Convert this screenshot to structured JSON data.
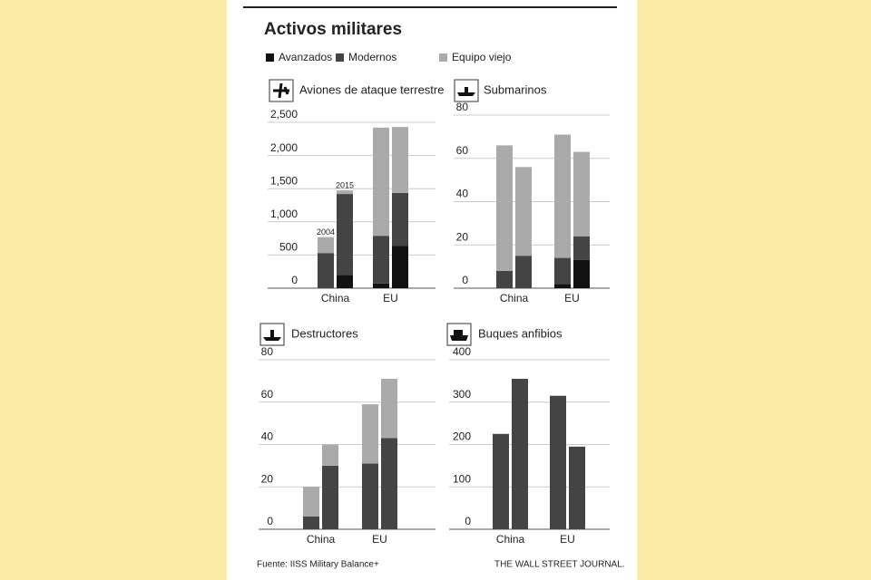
{
  "title": "Activos militares",
  "source": "Fuente: IISS Military Balance+",
  "credit": "THE WALL STREET JOURNAL.",
  "legend": [
    {
      "name": "Avanzados",
      "color": "#111111"
    },
    {
      "name": "Modernos",
      "color": "#444444"
    },
    {
      "name": "Equipo viejo",
      "color": "#aaaaaa"
    }
  ],
  "chart_data": [
    {
      "type": "bar",
      "stacked": true,
      "title": "Aviones de ataque terrestre",
      "groups": [
        "China",
        "EU"
      ],
      "categories": [
        null,
        null,
        null,
        null
      ],
      "annotations": [
        "2004",
        "2015",
        null,
        null
      ],
      "series": [
        {
          "values": [
            0,
            200,
            70,
            640
          ]
        },
        {
          "values": [
            530,
            1220,
            720,
            795
          ]
        },
        {
          "values": [
            240,
            55,
            1630,
            995
          ]
        }
      ],
      "ylim": [
        0,
        2500
      ],
      "yticks": [
        0,
        500,
        {
          "value": 1000,
          "label": "1,000"
        },
        {
          "value": 1500,
          "label": "1,500"
        },
        {
          "value": 2000,
          "label": "2,000"
        },
        {
          "value": 2500,
          "label": "2,500"
        }
      ],
      "grid": true
    },
    {
      "type": "bar",
      "stacked": true,
      "title": "Submarinos",
      "groups": [
        "China",
        "EU"
      ],
      "categories": [
        null,
        null,
        null,
        null
      ],
      "series": [
        {
          "values": [
            0,
            0,
            2,
            13
          ]
        },
        {
          "values": [
            8,
            15,
            12,
            11
          ]
        },
        {
          "values": [
            58,
            41,
            57,
            39
          ]
        }
      ],
      "ylim": [
        0,
        80
      ],
      "yticks": [
        0,
        20,
        40,
        60,
        80
      ],
      "grid": true
    },
    {
      "type": "bar",
      "stacked": true,
      "title": "Destructores",
      "groups": [
        "China",
        "EU"
      ],
      "categories": [
        null,
        null,
        null,
        null
      ],
      "series": [
        {
          "values": [
            0,
            0,
            0,
            0
          ]
        },
        {
          "values": [
            6,
            30,
            31,
            43
          ]
        },
        {
          "values": [
            14,
            10,
            28,
            28
          ]
        }
      ],
      "ylim": [
        0,
        80
      ],
      "yticks": [
        0,
        20,
        40,
        60,
        80
      ],
      "grid": true
    },
    {
      "type": "bar",
      "stacked": true,
      "title": "Buques anfibios",
      "groups": [
        "China",
        "EU"
      ],
      "categories": [
        null,
        null,
        null,
        null
      ],
      "series": [
        {
          "values": [
            225,
            355,
            315,
            195
          ],
          "color": "#444444"
        }
      ],
      "ylim": [
        0,
        400
      ],
      "yticks": [
        0,
        100,
        200,
        300,
        400
      ],
      "grid": true
    }
  ]
}
